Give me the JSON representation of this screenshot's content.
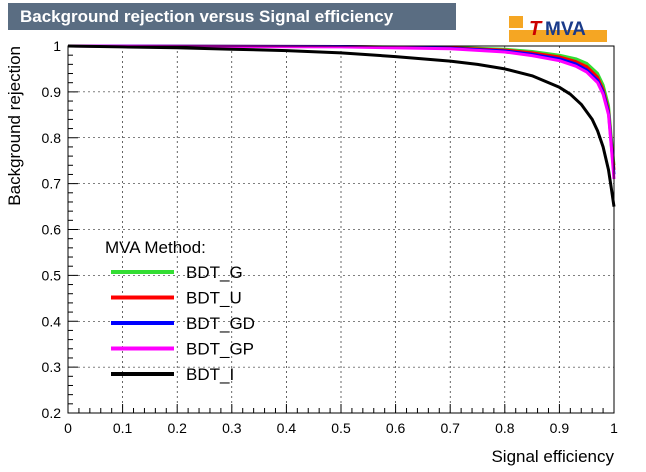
{
  "title": "Background rejection versus Signal efficiency",
  "logo": {
    "letter": "T",
    "text": "MVA"
  },
  "colors": {
    "title_bg": "#5a6d82",
    "logo_accent": "#f5a623",
    "logo_red": "#cc0000",
    "logo_blue": "#1a3b8a"
  },
  "chart_data": {
    "type": "line",
    "title": "Background rejection versus Signal efficiency",
    "xlabel": "Signal efficiency",
    "ylabel": "Background rejection",
    "xlim": [
      0,
      1
    ],
    "ylim": [
      0.2,
      1
    ],
    "x_ticks": [
      "0",
      "0.1",
      "0.2",
      "0.3",
      "0.4",
      "0.5",
      "0.6",
      "0.7",
      "0.8",
      "0.9",
      "1"
    ],
    "y_ticks": [
      "0.2",
      "0.3",
      "0.4",
      "0.5",
      "0.6",
      "0.7",
      "0.8",
      "0.9",
      "1"
    ],
    "grid": true,
    "legend": {
      "title": "MVA Method:",
      "placement": "bottom-left"
    },
    "series": [
      {
        "name": "BDT_G",
        "color": "#33dd33",
        "x": [
          0,
          0.5,
          0.7,
          0.8,
          0.85,
          0.9,
          0.93,
          0.95,
          0.97,
          0.98,
          0.99,
          0.995,
          1.0
        ],
        "y": [
          1.0,
          0.999,
          0.997,
          0.993,
          0.988,
          0.98,
          0.972,
          0.962,
          0.94,
          0.915,
          0.87,
          0.8,
          0.74
        ]
      },
      {
        "name": "BDT_U",
        "color": "#ff0000",
        "x": [
          0,
          0.5,
          0.7,
          0.8,
          0.85,
          0.9,
          0.93,
          0.95,
          0.97,
          0.98,
          0.99,
          0.995,
          1.0
        ],
        "y": [
          1.0,
          0.999,
          0.996,
          0.991,
          0.985,
          0.976,
          0.966,
          0.955,
          0.932,
          0.905,
          0.86,
          0.79,
          0.73
        ]
      },
      {
        "name": "BDT_GD",
        "color": "#0000ff",
        "x": [
          0,
          0.5,
          0.7,
          0.8,
          0.85,
          0.9,
          0.93,
          0.95,
          0.97,
          0.98,
          0.99,
          0.995,
          1.0
        ],
        "y": [
          1.0,
          0.999,
          0.995,
          0.989,
          0.982,
          0.972,
          0.961,
          0.948,
          0.925,
          0.9,
          0.855,
          0.785,
          0.72
        ]
      },
      {
        "name": "BDT_GP",
        "color": "#ff00ff",
        "x": [
          0,
          0.5,
          0.7,
          0.8,
          0.85,
          0.9,
          0.93,
          0.95,
          0.97,
          0.98,
          0.99,
          0.995,
          1.0
        ],
        "y": [
          1.0,
          0.998,
          0.994,
          0.987,
          0.979,
          0.968,
          0.956,
          0.943,
          0.92,
          0.895,
          0.85,
          0.78,
          0.71
        ]
      },
      {
        "name": "BDT_I",
        "color": "#000000",
        "x": [
          0,
          0.1,
          0.2,
          0.3,
          0.4,
          0.5,
          0.6,
          0.7,
          0.75,
          0.8,
          0.85,
          0.9,
          0.92,
          0.94,
          0.96,
          0.97,
          0.98,
          0.99,
          0.995,
          1.0
        ],
        "y": [
          1.0,
          0.998,
          0.996,
          0.993,
          0.99,
          0.985,
          0.977,
          0.967,
          0.96,
          0.95,
          0.935,
          0.91,
          0.895,
          0.873,
          0.84,
          0.815,
          0.78,
          0.73,
          0.69,
          0.65
        ]
      }
    ]
  }
}
